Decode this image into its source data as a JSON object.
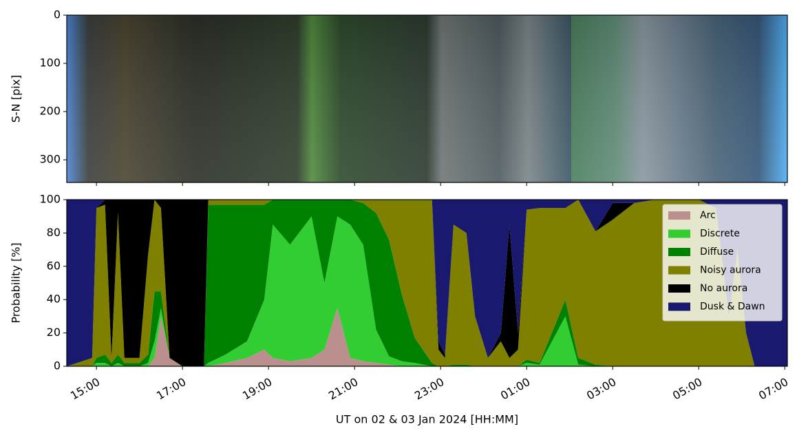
{
  "chart_data": [
    {
      "type": "image",
      "ylabel": "S-N [pix]",
      "ylim": [
        347,
        0
      ],
      "yticks": [
        0,
        100,
        200,
        300
      ]
    },
    {
      "type": "area",
      "stacked": true,
      "ylabel": "Probability [%]",
      "xlabel": "UT on 02 & 03 Jan 2024 [HH:MM]",
      "xlim": [
        14.31,
        31.06
      ],
      "xticks": [
        {
          "value": 15,
          "label": "15:00"
        },
        {
          "value": 17,
          "label": "17:00"
        },
        {
          "value": 19,
          "label": "19:00"
        },
        {
          "value": 21,
          "label": "21:00"
        },
        {
          "value": 23,
          "label": "23:00"
        },
        {
          "value": 25,
          "label": "01:00"
        },
        {
          "value": 27,
          "label": "03:00"
        },
        {
          "value": 29,
          "label": "05:00"
        },
        {
          "value": 31,
          "label": "07:00"
        }
      ],
      "ylim": [
        0,
        100
      ],
      "yticks": [
        0,
        20,
        40,
        60,
        80,
        100
      ],
      "legend": "upper right",
      "x": [
        14.31,
        14.9,
        15.0,
        15.2,
        15.35,
        15.5,
        15.65,
        16.0,
        16.2,
        16.35,
        16.5,
        16.7,
        17.0,
        17.5,
        17.6,
        18.0,
        18.5,
        18.9,
        19.1,
        19.5,
        20.0,
        20.3,
        20.6,
        20.9,
        21.2,
        21.5,
        21.8,
        22.1,
        22.4,
        22.8,
        22.95,
        23.1,
        23.3,
        23.6,
        23.8,
        24.1,
        24.4,
        24.6,
        24.8,
        25.0,
        25.3,
        25.9,
        26.2,
        26.6,
        27.0,
        27.5,
        28.0,
        28.5,
        29.0,
        29.4,
        29.7,
        29.9,
        30.1,
        30.3,
        31.06
      ],
      "series": [
        {
          "name": "Arc",
          "color": "#bc8f8f",
          "values": [
            0,
            0,
            0,
            0,
            0,
            0,
            0,
            0,
            0,
            5,
            30,
            5,
            0,
            0,
            0,
            2,
            5,
            10,
            5,
            3,
            5,
            10,
            35,
            5,
            3,
            2,
            1,
            0,
            0,
            0,
            0,
            0,
            0,
            0,
            0,
            0,
            0,
            0,
            0,
            0,
            0,
            0,
            0,
            0,
            0,
            0,
            0,
            0,
            0,
            0,
            0,
            0,
            0,
            0,
            0
          ]
        },
        {
          "name": "Discrete",
          "color": "#32cd32",
          "values": [
            0,
            0,
            2,
            2,
            0,
            2,
            0,
            0,
            2,
            10,
            5,
            0,
            0,
            0,
            2,
            5,
            10,
            30,
            80,
            70,
            85,
            40,
            55,
            80,
            70,
            20,
            5,
            3,
            2,
            0,
            0,
            0,
            0,
            0,
            0,
            0,
            0,
            0,
            0,
            2,
            1,
            30,
            1,
            0,
            0,
            0,
            0,
            0,
            0,
            0,
            0,
            0,
            0,
            0,
            0
          ]
        },
        {
          "name": "Diffuse",
          "color": "#008000",
          "values": [
            0,
            0,
            3,
            5,
            2,
            5,
            2,
            2,
            5,
            30,
            10,
            0,
            0,
            0,
            95,
            90,
            82,
            57,
            15,
            27,
            10,
            50,
            10,
            15,
            25,
            70,
            70,
            40,
            15,
            2,
            0,
            0,
            1,
            1,
            0,
            0,
            0,
            0,
            0,
            2,
            1,
            10,
            4,
            1,
            0,
            0,
            0,
            0,
            0,
            0,
            0,
            0,
            0,
            0,
            0
          ]
        },
        {
          "name": "Noisy aurora",
          "color": "#808000",
          "values": [
            0,
            5,
            90,
            90,
            3,
            85,
            3,
            3,
            60,
            55,
            50,
            0,
            0,
            0,
            3,
            3,
            3,
            3,
            0,
            0,
            0,
            0,
            0,
            0,
            2,
            8,
            24,
            57,
            83,
            98,
            10,
            5,
            84,
            79,
            30,
            5,
            15,
            5,
            10,
            90,
            93,
            55,
            95,
            80,
            88,
            98,
            100,
            100,
            100,
            95,
            30,
            70,
            20,
            0,
            0
          ]
        },
        {
          "name": "No aurora",
          "color": "#000000",
          "values": [
            0,
            0,
            0,
            3,
            95,
            8,
            95,
            95,
            33,
            0,
            5,
            95,
            100,
            100,
            0,
            0,
            0,
            0,
            0,
            0,
            0,
            0,
            0,
            0,
            0,
            0,
            0,
            0,
            0,
            0,
            5,
            2,
            0,
            0,
            0,
            0,
            5,
            80,
            10,
            0,
            0,
            0,
            0,
            0,
            10,
            0,
            0,
            0,
            0,
            0,
            0,
            0,
            0,
            0,
            0
          ]
        },
        {
          "name": "Dusk & Dawn",
          "color": "#191970",
          "values": [
            100,
            95,
            5,
            0,
            0,
            0,
            0,
            0,
            0,
            0,
            0,
            0,
            0,
            0,
            0,
            0,
            0,
            0,
            0,
            0,
            0,
            0,
            0,
            0,
            0,
            0,
            0,
            0,
            0,
            0,
            85,
            93,
            15,
            20,
            70,
            95,
            80,
            15,
            80,
            6,
            5,
            5,
            0,
            19,
            2,
            2,
            0,
            0,
            0,
            5,
            70,
            30,
            80,
            100,
            100
          ]
        }
      ]
    }
  ]
}
